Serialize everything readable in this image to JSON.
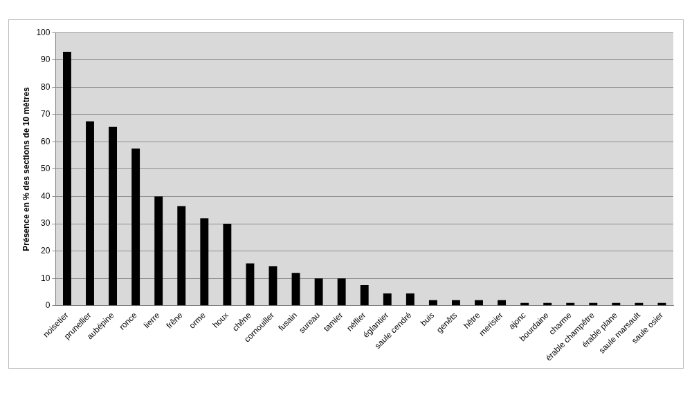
{
  "chart_data": {
    "type": "bar",
    "y_label": "Présence en % des sections de 10 mètres",
    "categories": [
      "noisetier",
      "prunellier",
      "aubépine",
      "ronce",
      "lierre",
      "frêne",
      "orme",
      "houx",
      "chêne",
      "cornouiller",
      "fusain",
      "sureau",
      "tamier",
      "néflier",
      "églantier",
      "saule cendré",
      "buis",
      "genêts",
      "hêtre",
      "merisier",
      "ajonc",
      "bourdaine",
      "charme",
      "érable champêtre",
      "érable plane",
      "saule marsault",
      "saule osier"
    ],
    "values": [
      93,
      67.5,
      65.5,
      57.5,
      40,
      36.5,
      32,
      30,
      15.5,
      14.5,
      12,
      10,
      10,
      7.5,
      4.5,
      4.5,
      2,
      2,
      2,
      2,
      1,
      1,
      1,
      1,
      1,
      1,
      1
    ],
    "color": "#000000",
    "ylim": [
      0,
      100
    ],
    "yticks": [
      0,
      10,
      20,
      30,
      40,
      50,
      60,
      70,
      80,
      90,
      100
    ],
    "grid": true
  }
}
